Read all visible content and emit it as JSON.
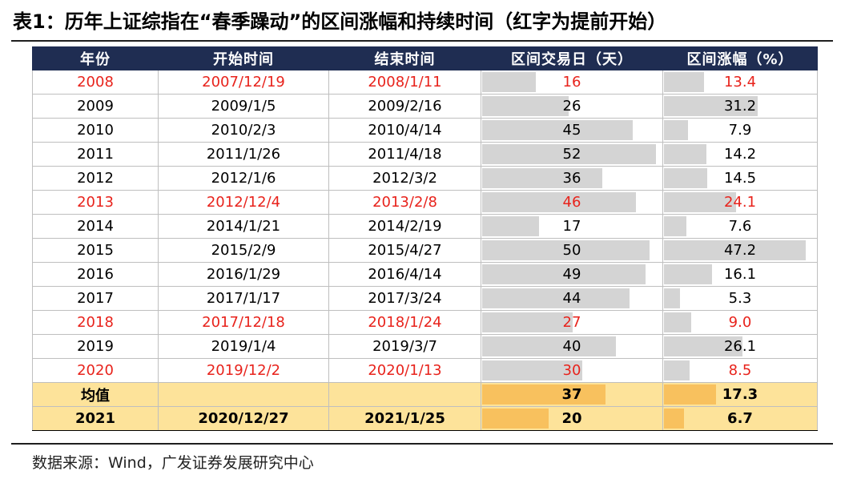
{
  "title": "表1：历年上证综指在“春季躁动”的区间涨幅和持续时间（红字为提前开始）",
  "source": "数据来源：Wind，广发证券发展研究中心",
  "highlight_color": "#e8231c",
  "table": {
    "headers": [
      "年份",
      "开始时间",
      "结束时间",
      "区间交易日（天）",
      "区间涨幅（%）"
    ],
    "bar_scale": {
      "days_max": 52,
      "rise_max": 47.2
    },
    "rows": [
      {
        "year": "2008",
        "start": "2007/12/19",
        "end": "2008/1/11",
        "days": 16,
        "rise": 13.4,
        "days_text": "16",
        "rise_text": "13.4",
        "red": true
      },
      {
        "year": "2009",
        "start": "2009/1/5",
        "end": "2009/2/16",
        "days": 26,
        "rise": 31.2,
        "days_text": "26",
        "rise_text": "31.2",
        "red": false
      },
      {
        "year": "2010",
        "start": "2010/2/3",
        "end": "2010/4/14",
        "days": 45,
        "rise": 7.9,
        "days_text": "45",
        "rise_text": "7.9",
        "red": false
      },
      {
        "year": "2011",
        "start": "2011/1/26",
        "end": "2011/4/18",
        "days": 52,
        "rise": 14.2,
        "days_text": "52",
        "rise_text": "14.2",
        "red": false
      },
      {
        "year": "2012",
        "start": "2012/1/6",
        "end": "2012/3/2",
        "days": 36,
        "rise": 14.5,
        "days_text": "36",
        "rise_text": "14.5",
        "red": false
      },
      {
        "year": "2013",
        "start": "2012/12/4",
        "end": "2013/2/8",
        "days": 46,
        "rise": 24.1,
        "days_text": "46",
        "rise_text": "24.1",
        "red": true
      },
      {
        "year": "2014",
        "start": "2014/1/21",
        "end": "2014/2/19",
        "days": 17,
        "rise": 7.6,
        "days_text": "17",
        "rise_text": "7.6",
        "red": false
      },
      {
        "year": "2015",
        "start": "2015/2/9",
        "end": "2015/4/27",
        "days": 50,
        "rise": 47.2,
        "days_text": "50",
        "rise_text": "47.2",
        "red": false
      },
      {
        "year": "2016",
        "start": "2016/1/29",
        "end": "2016/4/14",
        "days": 49,
        "rise": 16.1,
        "days_text": "49",
        "rise_text": "16.1",
        "red": false
      },
      {
        "year": "2017",
        "start": "2017/1/17",
        "end": "2017/3/24",
        "days": 44,
        "rise": 5.3,
        "days_text": "44",
        "rise_text": "5.3",
        "red": false
      },
      {
        "year": "2018",
        "start": "2017/12/18",
        "end": "2018/1/24",
        "days": 27,
        "rise": 9.0,
        "days_text": "27",
        "rise_text": "9.0",
        "red": true
      },
      {
        "year": "2019",
        "start": "2019/1/4",
        "end": "2019/3/7",
        "days": 40,
        "rise": 26.1,
        "days_text": "40",
        "rise_text": "26.1",
        "red": false
      },
      {
        "year": "2020",
        "start": "2019/12/2",
        "end": "2020/1/13",
        "days": 30,
        "rise": 8.5,
        "days_text": "30",
        "rise_text": "8.5",
        "red": true
      }
    ],
    "average": {
      "label": "均值",
      "days": 37,
      "rise": 17.3,
      "days_text": "37",
      "rise_text": "17.3"
    },
    "current": {
      "year": "2021",
      "start": "2020/12/27",
      "end": "2021/1/25",
      "days": 20,
      "rise": 6.7,
      "days_text": "20",
      "rise_text": "6.7"
    }
  }
}
